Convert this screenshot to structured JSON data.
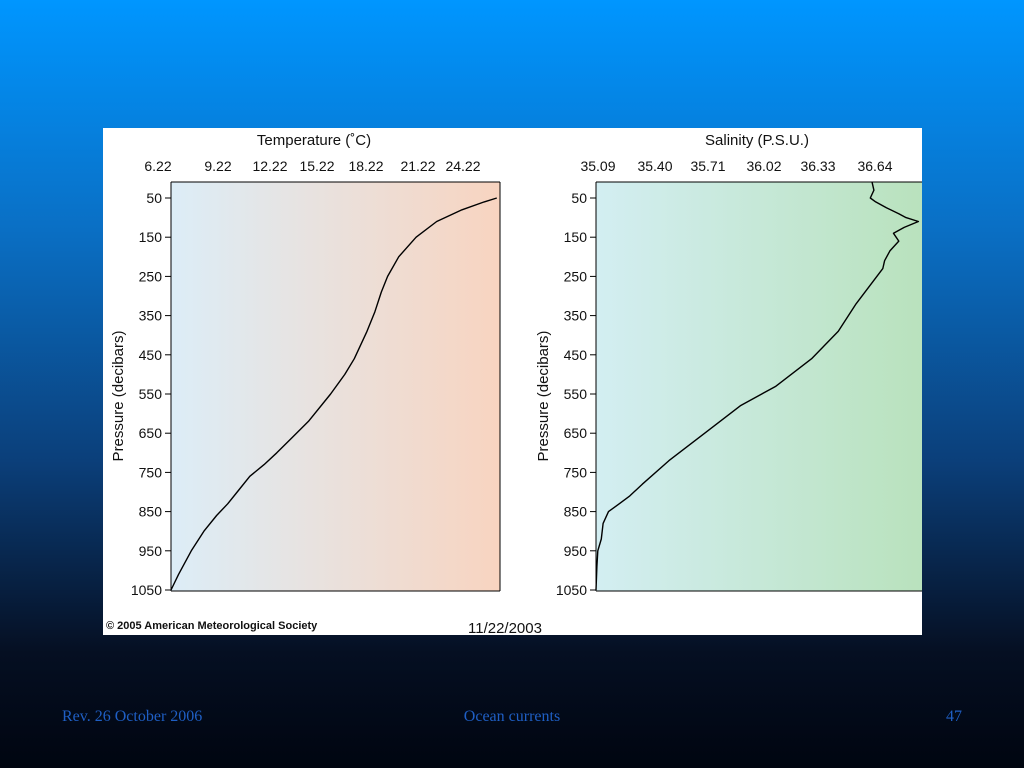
{
  "slide": {
    "footer_left": "Rev. 26 October 2006",
    "footer_center": "Ocean currents",
    "footer_right": "47"
  },
  "figure": {
    "copyright": "© 2005 American Meteorological Society",
    "date": "11/22/2003"
  },
  "chart_data": [
    {
      "type": "line",
      "title": "Temperature (˚C)",
      "xlabel": "Temperature (˚C)",
      "ylabel": "Pressure (decibars)",
      "x_axis_position": "top",
      "y_axis_inverted": true,
      "x_ticks": [
        "6.22",
        "9.22",
        "12.22",
        "15.22",
        "18.22",
        "21.22",
        "24.22"
      ],
      "y_ticks": [
        "50",
        "150",
        "250",
        "350",
        "450",
        "550",
        "650",
        "750",
        "850",
        "950",
        "1050"
      ],
      "xlim": [
        6.22,
        27.0
      ],
      "ylim": [
        1050,
        10
      ],
      "background_gradient": [
        "#dcedf7",
        "#f8d4c0"
      ],
      "line_color": "#000000",
      "series": [
        {
          "x": [
            26.8,
            26.0,
            24.6,
            23.0,
            21.7,
            20.6,
            19.9,
            19.5,
            19.1,
            18.6,
            17.8,
            17.2,
            16.3,
            14.9,
            13.9,
            12.9,
            12.1,
            11.2,
            10.4,
            9.8,
            9.1,
            8.3,
            7.5,
            6.7,
            6.22
          ],
          "y": [
            50,
            60,
            80,
            110,
            150,
            200,
            250,
            290,
            340,
            390,
            460,
            500,
            550,
            620,
            660,
            700,
            730,
            760,
            800,
            830,
            860,
            900,
            950,
            1010,
            1050
          ]
        }
      ]
    },
    {
      "type": "line",
      "title": "Salinity (P.S.U.)",
      "xlabel": "Salinity (P.S.U.)",
      "ylabel": "Pressure (decibars)",
      "x_axis_position": "top",
      "y_axis_inverted": true,
      "x_ticks": [
        "35.09",
        "35.40",
        "35.71",
        "36.02",
        "36.33",
        "36.64"
      ],
      "y_ticks": [
        "50",
        "150",
        "250",
        "350",
        "450",
        "550",
        "650",
        "750",
        "850",
        "950",
        "1050"
      ],
      "xlim": [
        35.09,
        36.92
      ],
      "ylim": [
        1050,
        10
      ],
      "background_gradient": [
        "#d3eef2",
        "#b9e2bd"
      ],
      "line_color": "#000000",
      "series": [
        {
          "x": [
            36.64,
            36.65,
            36.63,
            36.66,
            36.72,
            36.79,
            36.83,
            36.9,
            36.82,
            36.76,
            36.79,
            36.74,
            36.71,
            36.7,
            36.65,
            36.55,
            36.45,
            36.3,
            36.1,
            35.9,
            35.7,
            35.5,
            35.35,
            35.28,
            35.22,
            35.16,
            35.13,
            35.12,
            35.1,
            35.095,
            35.09
          ],
          "y": [
            10,
            30,
            50,
            60,
            75,
            90,
            100,
            110,
            125,
            140,
            160,
            185,
            210,
            230,
            260,
            320,
            390,
            460,
            530,
            580,
            650,
            720,
            780,
            810,
            830,
            850,
            880,
            920,
            950,
            990,
            1050
          ]
        }
      ]
    }
  ]
}
